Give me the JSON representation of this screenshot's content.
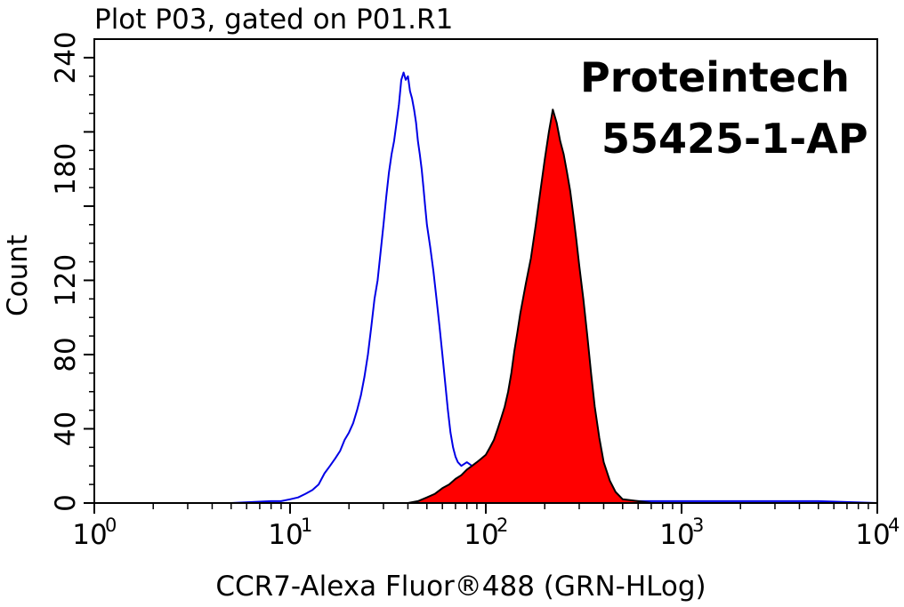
{
  "chart_data": {
    "type": "area",
    "title": "Plot P03, gated on P01.R1",
    "xlabel": "CCR7-Alexa Fluor®488 (GRN-HLog)",
    "ylabel": "Count",
    "xscale": "log",
    "xlim": [
      1,
      10000
    ],
    "ylim": [
      0,
      250
    ],
    "grid": false,
    "x_ticks": [
      {
        "value": 1,
        "base": "10",
        "exp": "0"
      },
      {
        "value": 10,
        "base": "10",
        "exp": "1"
      },
      {
        "value": 100,
        "base": "10",
        "exp": "2"
      },
      {
        "value": 1000,
        "base": "10",
        "exp": "3"
      },
      {
        "value": 10000,
        "base": "10",
        "exp": "4"
      }
    ],
    "y_ticks": [
      {
        "value": 0,
        "label": "0"
      },
      {
        "value": 40,
        "label": "40"
      },
      {
        "value": 80,
        "label": "80"
      },
      {
        "value": 120,
        "label": "120"
      },
      {
        "value": 180,
        "label": "180"
      },
      {
        "value": 240,
        "label": "240"
      }
    ],
    "annotations": [
      "Proteintech",
      "55425-1-AP"
    ],
    "series": [
      {
        "style": "outline",
        "color": "#0000e6",
        "points": [
          [
            1,
            0
          ],
          [
            5,
            0
          ],
          [
            8,
            1
          ],
          [
            9,
            1
          ],
          [
            10,
            2
          ],
          [
            11,
            3
          ],
          [
            12,
            5
          ],
          [
            13,
            7
          ],
          [
            14,
            10
          ],
          [
            15,
            16
          ],
          [
            16,
            20
          ],
          [
            17,
            24
          ],
          [
            18,
            28
          ],
          [
            19,
            34
          ],
          [
            20,
            38
          ],
          [
            21,
            43
          ],
          [
            22,
            50
          ],
          [
            23,
            58
          ],
          [
            24,
            68
          ],
          [
            25,
            80
          ],
          [
            26,
            95
          ],
          [
            27,
            110
          ],
          [
            28,
            120
          ],
          [
            29,
            135
          ],
          [
            30,
            150
          ],
          [
            31,
            165
          ],
          [
            32,
            178
          ],
          [
            33,
            188
          ],
          [
            34,
            195
          ],
          [
            35,
            205
          ],
          [
            36,
            215
          ],
          [
            37,
            228
          ],
          [
            38,
            232
          ],
          [
            39,
            228
          ],
          [
            40,
            230
          ],
          [
            41,
            222
          ],
          [
            42,
            218
          ],
          [
            43,
            212
          ],
          [
            44,
            205
          ],
          [
            45,
            195
          ],
          [
            46,
            188
          ],
          [
            47,
            180
          ],
          [
            48,
            170
          ],
          [
            49,
            160
          ],
          [
            50,
            150
          ],
          [
            52,
            138
          ],
          [
            54,
            125
          ],
          [
            56,
            110
          ],
          [
            58,
            95
          ],
          [
            60,
            80
          ],
          [
            62,
            65
          ],
          [
            64,
            50
          ],
          [
            66,
            38
          ],
          [
            68,
            30
          ],
          [
            70,
            25
          ],
          [
            72,
            22
          ],
          [
            75,
            20
          ],
          [
            80,
            22
          ],
          [
            85,
            20
          ],
          [
            90,
            15
          ],
          [
            100,
            10
          ],
          [
            120,
            5
          ],
          [
            150,
            2
          ],
          [
            200,
            1
          ],
          [
            500,
            1
          ],
          [
            1000,
            1
          ],
          [
            2000,
            1
          ],
          [
            5000,
            1
          ],
          [
            10000,
            0
          ]
        ]
      },
      {
        "style": "filled",
        "color": "#ff0000",
        "edge": "#000000",
        "points": [
          [
            1,
            0
          ],
          [
            40,
            0
          ],
          [
            45,
            1
          ],
          [
            50,
            3
          ],
          [
            55,
            5
          ],
          [
            60,
            8
          ],
          [
            65,
            10
          ],
          [
            70,
            13
          ],
          [
            75,
            15
          ],
          [
            80,
            18
          ],
          [
            85,
            20
          ],
          [
            90,
            22
          ],
          [
            95,
            24
          ],
          [
            100,
            26
          ],
          [
            105,
            30
          ],
          [
            110,
            34
          ],
          [
            115,
            40
          ],
          [
            120,
            46
          ],
          [
            125,
            52
          ],
          [
            130,
            60
          ],
          [
            135,
            70
          ],
          [
            140,
            82
          ],
          [
            145,
            92
          ],
          [
            150,
            102
          ],
          [
            160,
            118
          ],
          [
            170,
            132
          ],
          [
            180,
            150
          ],
          [
            190,
            168
          ],
          [
            200,
            185
          ],
          [
            210,
            200
          ],
          [
            220,
            212
          ],
          [
            230,
            205
          ],
          [
            240,
            195
          ],
          [
            250,
            188
          ],
          [
            260,
            178
          ],
          [
            270,
            168
          ],
          [
            280,
            155
          ],
          [
            290,
            142
          ],
          [
            300,
            128
          ],
          [
            315,
            110
          ],
          [
            330,
            90
          ],
          [
            345,
            70
          ],
          [
            360,
            52
          ],
          [
            380,
            35
          ],
          [
            400,
            22
          ],
          [
            430,
            12
          ],
          [
            460,
            6
          ],
          [
            500,
            2
          ],
          [
            600,
            1
          ],
          [
            700,
            0
          ],
          [
            10000,
            0
          ]
        ]
      }
    ]
  }
}
